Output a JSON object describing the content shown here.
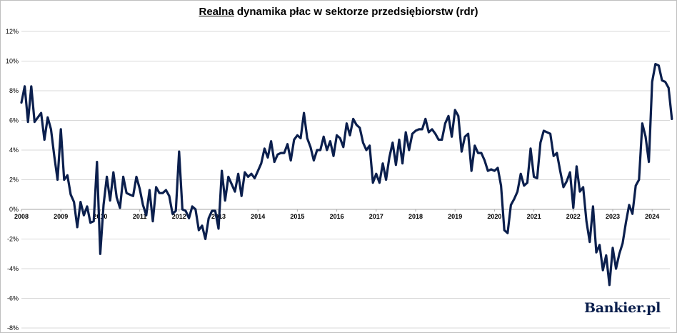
{
  "brand": "Bankier.pl",
  "chart_data": {
    "type": "line",
    "title_underlined": "Realna",
    "title_rest": " dynamika płac w sektorze przedsiębiorstw (rdr)",
    "ylim": [
      -8,
      12
    ],
    "y_ticks": [
      12,
      10,
      8,
      6,
      4,
      2,
      0,
      -2,
      -4,
      -6,
      -8
    ],
    "y_tick_labels": [
      "12%",
      "10%",
      "8%",
      "6%",
      "4%",
      "2%",
      "0%",
      "-2%",
      "-4%",
      "-6%",
      "-8%"
    ],
    "x_tick_labels": [
      "2008",
      "2009",
      "2010",
      "2011",
      "2012",
      "2013",
      "2014",
      "2015",
      "2016",
      "2017",
      "2018",
      "2019",
      "2020",
      "2021",
      "2022",
      "2023",
      "2024"
    ],
    "x_start_year": 2008,
    "grid": true,
    "line_color": "#0b1f4d",
    "series": [
      {
        "values": [
          7.2,
          8.3,
          5.9,
          8.3,
          5.9,
          6.2,
          6.5,
          4.7,
          6.2,
          5.4,
          3.6,
          2.0,
          5.4,
          2.0,
          2.3,
          1.0,
          0.5,
          -1.2,
          0.5,
          -0.4,
          0.2,
          -0.9,
          -0.8,
          3.2,
          -3.0,
          0.3,
          2.2,
          0.6,
          2.5,
          0.8,
          0.1,
          2.2,
          1.1,
          1.0,
          0.9,
          2.2,
          1.4,
          0.3,
          -0.4,
          1.3,
          -0.8,
          1.5,
          1.1,
          1.1,
          1.3,
          0.9,
          -0.3,
          -0.1,
          3.9,
          -0.0,
          -0.1,
          -0.6,
          0.2,
          0.0,
          -1.4,
          -1.1,
          -2.0,
          -0.6,
          -0.1,
          -0.1,
          -1.3,
          2.6,
          0.6,
          2.2,
          1.7,
          1.2,
          2.4,
          0.9,
          2.5,
          2.2,
          2.4,
          2.1,
          2.6,
          3.1,
          4.1,
          3.5,
          4.6,
          3.2,
          3.7,
          3.8,
          3.8,
          4.4,
          3.3,
          4.7,
          5.0,
          4.8,
          6.5,
          4.8,
          4.2,
          3.3,
          4.0,
          4.0,
          4.9,
          4.0,
          4.6,
          3.6,
          5.0,
          4.8,
          4.2,
          5.8,
          5.0,
          6.1,
          5.7,
          5.5,
          4.5,
          4.0,
          4.3,
          1.8,
          2.4,
          1.8,
          3.1,
          2.0,
          3.5,
          4.5,
          3.0,
          4.7,
          3.1,
          5.2,
          4.0,
          5.1,
          5.3,
          5.4,
          5.4,
          6.1,
          5.2,
          5.4,
          5.1,
          4.7,
          4.7,
          5.8,
          6.3,
          4.9,
          6.7,
          6.3,
          3.9,
          4.9,
          5.1,
          2.6,
          4.3,
          3.8,
          3.8,
          3.3,
          2.6,
          2.7,
          2.6,
          2.8,
          1.6,
          -1.4,
          -1.6,
          0.3,
          0.7,
          1.2,
          2.4,
          1.6,
          1.8,
          4.1,
          2.2,
          2.1,
          4.5,
          5.3,
          5.2,
          5.1,
          3.6,
          3.8,
          2.6,
          1.5,
          1.9,
          2.5,
          0.1,
          2.9,
          1.2,
          1.5,
          -0.8,
          -2.2,
          0.2,
          -2.9,
          -2.4,
          -4.1,
          -3.1,
          -5.1,
          -2.6,
          -4.0,
          -3.0,
          -2.3,
          -0.9,
          0.3,
          -0.3,
          1.6,
          2.0,
          5.8,
          4.9,
          3.2,
          8.6,
          9.8,
          9.7,
          8.7,
          8.6,
          8.2,
          6.1
        ]
      }
    ]
  }
}
